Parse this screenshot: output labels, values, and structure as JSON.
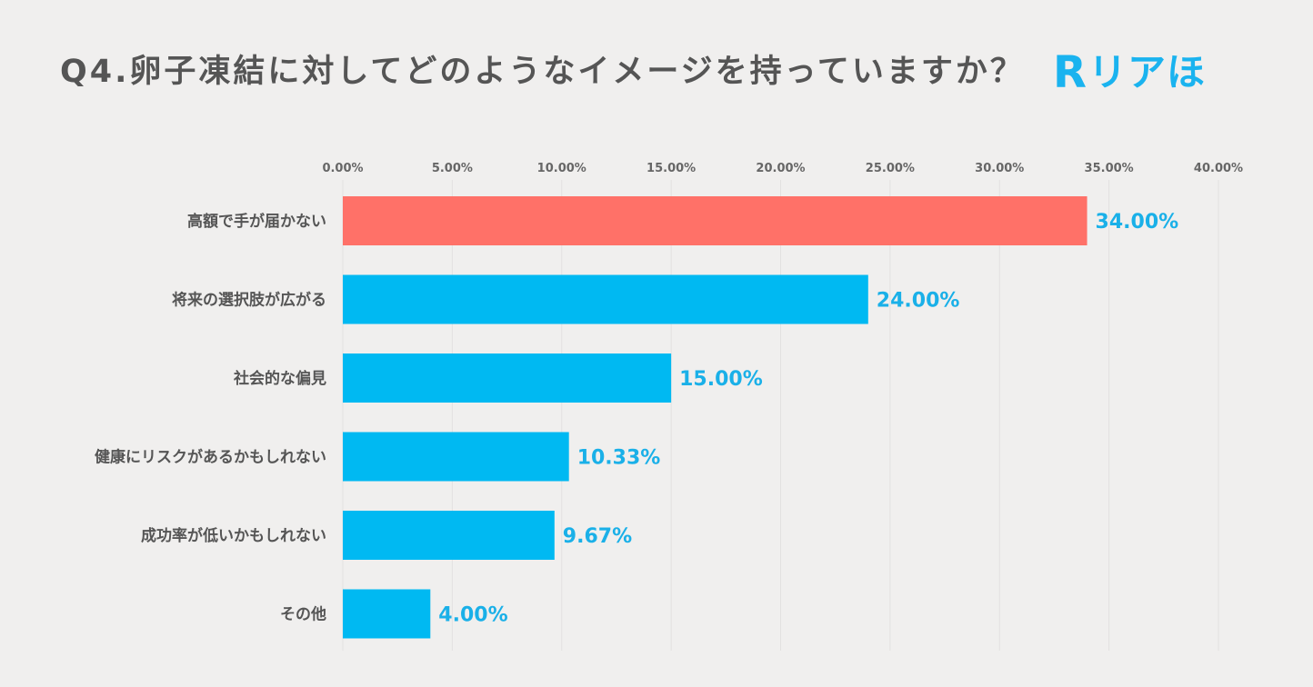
{
  "title": "Q4.卵子凍結に対してどのようなイメージを持っていますか？",
  "logo": {
    "mark": "R",
    "text": "リアほ"
  },
  "colors": {
    "highlight": "#ff7168",
    "bar": "#00b9f2",
    "value_label": "#1ab0e8"
  },
  "chart_data": {
    "type": "bar",
    "orientation": "horizontal",
    "categories": [
      "高額で手が届かない",
      "将来の選択肢が広がる",
      "社会的な偏見",
      "健康にリスクがあるかもしれない",
      "成功率が低いかもしれない",
      "その他"
    ],
    "values": [
      34.0,
      24.0,
      15.0,
      10.33,
      9.67,
      4.0
    ],
    "value_labels": [
      "34.00%",
      "24.00%",
      "15.00%",
      "10.33%",
      "9.67%",
      "4.00%"
    ],
    "xlim": [
      0,
      40
    ],
    "xticks": [
      0,
      5,
      10,
      15,
      20,
      25,
      30,
      35,
      40
    ],
    "xtick_labels": [
      "0.00%",
      "5.00%",
      "10.00%",
      "15.00%",
      "20.00%",
      "25.00%",
      "30.00%",
      "35.00%",
      "40.00%"
    ],
    "axis_position": "top",
    "grid": true,
    "highlight_index": 0
  }
}
